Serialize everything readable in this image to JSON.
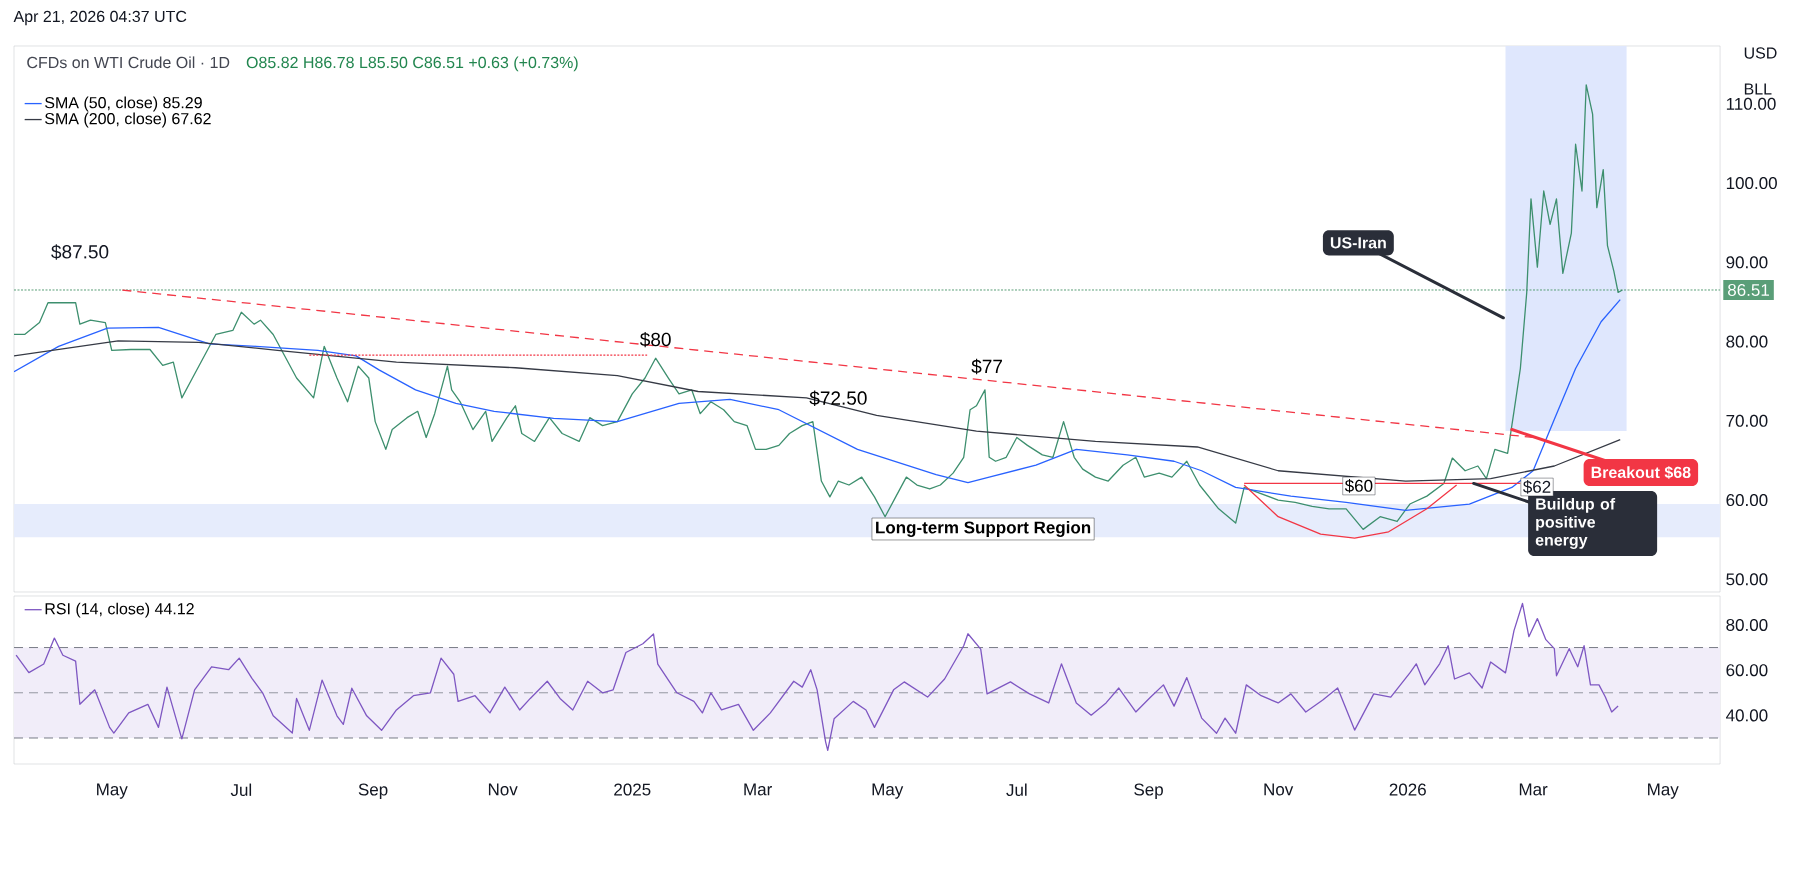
{
  "chart_data": [
    {
      "type": "line",
      "title": "CFDs on WTI Crude Oil · 1D",
      "subtitle": "O85.82 H86.78 L85.50 C86.51 +0.63 (+0.73%)",
      "xlim": [
        "2024-03-16",
        "2026-05-28"
      ],
      "ylim": [
        48.4,
        117.3
      ],
      "yticks": [
        {
          "value": 50,
          "label": "50.00"
        },
        {
          "value": 60,
          "label": "60.00"
        },
        {
          "value": 70,
          "label": "70.00"
        },
        {
          "value": 80,
          "label": "80.00"
        },
        {
          "value": 90,
          "label": "90.00"
        },
        {
          "value": 100,
          "label": "100.00"
        },
        {
          "value": 110,
          "label": "110.00"
        }
      ],
      "tick_labels": "y",
      "legend": "top left",
      "series": [
        {
          "color": "#3d8f6e",
          "x": [
            "2024-03-16",
            "2024-03-21",
            "2024-03-28",
            "2024-04-01",
            "2024-04-14",
            "2024-04-16",
            "2024-04-21",
            "2024-04-28",
            "2024-05-01",
            "2024-05-10",
            "2024-05-19",
            "2024-05-25",
            "2024-05-30",
            "2024-06-03",
            "2024-06-08",
            "2024-06-14",
            "2024-06-19",
            "2024-06-27",
            "2024-07-01",
            "2024-07-07",
            "2024-07-10",
            "2024-07-16",
            "2024-07-22",
            "2024-07-27",
            "2024-08-04",
            "2024-08-09",
            "2024-08-15",
            "2024-08-20",
            "2024-08-25",
            "2024-08-30",
            "2024-09-02",
            "2024-09-07",
            "2024-09-10",
            "2024-09-17",
            "2024-09-22",
            "2024-09-26",
            "2024-09-30",
            "2024-10-06",
            "2024-10-08",
            "2024-10-12",
            "2024-10-18",
            "2024-10-24",
            "2024-10-27",
            "2024-11-03",
            "2024-11-07",
            "2024-11-10",
            "2024-11-16",
            "2024-11-23",
            "2024-11-29",
            "2024-12-07",
            "2024-12-12",
            "2024-12-18",
            "2024-12-25",
            "2025-01-01",
            "2025-01-07",
            "2025-01-12",
            "2025-01-18",
            "2025-01-23",
            "2025-01-29",
            "2025-02-02",
            "2025-02-07",
            "2025-02-13",
            "2025-02-18",
            "2025-02-24",
            "2025-02-28",
            "2025-03-05",
            "2025-03-11",
            "2025-03-16",
            "2025-03-22",
            "2025-03-27",
            "2025-03-31",
            "2025-04-04",
            "2025-04-08",
            "2025-04-13",
            "2025-04-19",
            "2025-04-25",
            "2025-04-30",
            "2025-05-05",
            "2025-05-10",
            "2025-05-15",
            "2025-05-21",
            "2025-05-26",
            "2025-06-01",
            "2025-06-06",
            "2025-06-09",
            "2025-06-12",
            "2025-06-16",
            "2025-06-18",
            "2025-06-21",
            "2025-06-26",
            "2025-07-01",
            "2025-07-06",
            "2025-07-13",
            "2025-07-18",
            "2025-07-23",
            "2025-07-28",
            "2025-08-01",
            "2025-08-07",
            "2025-08-13",
            "2025-08-20",
            "2025-08-26",
            "2025-08-30",
            "2025-09-06",
            "2025-09-12",
            "2025-09-19",
            "2025-09-25",
            "2025-10-04",
            "2025-10-12",
            "2025-10-16",
            "2025-10-24",
            "2025-11-01",
            "2025-11-09",
            "2025-11-17",
            "2025-11-25",
            "2025-12-03",
            "2025-12-11",
            "2025-12-19",
            "2025-12-27",
            "2026-01-02",
            "2026-01-10",
            "2026-01-18",
            "2026-01-22",
            "2026-01-28",
            "2026-02-03",
            "2026-02-07",
            "2026-02-11",
            "2026-02-17",
            "2026-02-20",
            "2026-02-23",
            "2026-02-26",
            "2026-02-28",
            "2026-03-03",
            "2026-03-06",
            "2026-03-09",
            "2026-03-12",
            "2026-03-15",
            "2026-03-19",
            "2026-03-21",
            "2026-03-24",
            "2026-03-26",
            "2026-03-29",
            "2026-03-31",
            "2026-04-03",
            "2026-04-05",
            "2026-04-08",
            "2026-04-10",
            "2026-04-12"
          ],
          "values": [
            80.9,
            80.9,
            82.4,
            84.9,
            84.9,
            82.2,
            82.7,
            82.4,
            78.9,
            79.0,
            79.0,
            77.0,
            77.4,
            72.9,
            75.4,
            78.4,
            80.9,
            81.4,
            83.7,
            82.2,
            82.7,
            80.9,
            77.9,
            75.4,
            72.9,
            79.4,
            75.4,
            72.4,
            76.9,
            75.4,
            69.9,
            66.4,
            68.9,
            70.4,
            71.2,
            67.9,
            70.9,
            76.9,
            73.9,
            72.4,
            68.9,
            71.2,
            67.4,
            70.4,
            71.9,
            68.4,
            67.4,
            70.4,
            68.4,
            67.4,
            70.4,
            69.4,
            69.9,
            73.4,
            75.4,
            77.9,
            75.4,
            73.4,
            73.9,
            70.9,
            72.4,
            71.4,
            69.9,
            69.4,
            66.4,
            66.4,
            66.9,
            68.4,
            69.4,
            69.9,
            62.4,
            60.4,
            62.4,
            61.9,
            62.9,
            60.4,
            57.9,
            60.4,
            62.9,
            61.9,
            61.4,
            61.9,
            63.4,
            65.4,
            71.4,
            71.9,
            73.9,
            65.4,
            64.9,
            65.4,
            67.9,
            66.9,
            65.7,
            65.4,
            69.9,
            65.4,
            63.9,
            62.9,
            62.4,
            64.4,
            65.4,
            62.9,
            63.4,
            62.9,
            64.9,
            61.9,
            58.9,
            57.1,
            61.6,
            60.8,
            60.0,
            59.7,
            59.2,
            58.9,
            58.9,
            56.3,
            57.9,
            57.3,
            59.5,
            60.5,
            62.1,
            65.3,
            63.7,
            64.3,
            62.7,
            66.4,
            65.9,
            71.2,
            76.6,
            86.2,
            98.0,
            89.4,
            99.0,
            94.8,
            98.0,
            88.6,
            93.7,
            104.9,
            99.0,
            112.4,
            108.7,
            96.9,
            101.7,
            92.1,
            88.9,
            86.2,
            86.51
          ]
        },
        {
          "name": "SMA (50, close)  85.29",
          "color": "#2962ff",
          "x": [
            "2024-03-16",
            "2024-04-06",
            "2024-04-29",
            "2024-05-23",
            "2024-06-16",
            "2024-07-08",
            "2024-08-06",
            "2024-08-24",
            "2024-09-04",
            "2024-09-21",
            "2024-10-10",
            "2024-10-28",
            "2024-11-25",
            "2024-12-25",
            "2025-01-23",
            "2025-02-16",
            "2025-03-11",
            "2025-04-17",
            "2025-05-24",
            "2025-06-08",
            "2025-06-18",
            "2025-07-10",
            "2025-07-29",
            "2025-08-22",
            "2025-09-13",
            "2025-09-26",
            "2025-10-12",
            "2025-11-07",
            "2025-12-03",
            "2025-12-31",
            "2026-01-30",
            "2026-02-19",
            "2026-03-01",
            "2026-03-11",
            "2026-03-21",
            "2026-04-02",
            "2026-04-11"
          ],
          "values": [
            76.2,
            79.4,
            81.7,
            81.8,
            79.7,
            79.4,
            78.9,
            78.2,
            76.4,
            73.9,
            72.2,
            71.2,
            70.3,
            69.9,
            72.2,
            72.7,
            71.4,
            66.4,
            63.2,
            62.2,
            62.9,
            64.4,
            66.4,
            65.7,
            64.9,
            63.7,
            61.6,
            60.5,
            59.7,
            58.7,
            59.5,
            61.6,
            63.7,
            70.2,
            76.6,
            82.5,
            85.29
          ]
        },
        {
          "name": "SMA (200, close)  67.62",
          "color": "#363a45",
          "x": [
            "2024-03-16",
            "2024-05-04",
            "2024-06-11",
            "2024-07-18",
            "2024-09-12",
            "2024-11-07",
            "2024-12-25",
            "2025-02-01",
            "2025-03-24",
            "2025-04-26",
            "2025-06-12",
            "2025-08-07",
            "2025-09-24",
            "2025-11-01",
            "2025-12-31",
            "2026-02-09",
            "2026-03-11",
            "2026-04-11"
          ],
          "values": [
            78.2,
            80.1,
            79.9,
            78.9,
            77.4,
            76.7,
            75.7,
            73.7,
            72.9,
            70.7,
            68.7,
            67.4,
            66.7,
            63.7,
            62.4,
            62.7,
            64.3,
            67.62
          ]
        },
        {
          "color": "#f23645",
          "line_style": "dashed",
          "x": [
            "2024-05-06",
            "2026-03-01"
          ],
          "values": [
            86.5,
            67.9
          ]
        },
        {
          "color": "#f23645",
          "line_style": "dotted",
          "x": [
            "2024-08-02",
            "2025-01-08"
          ],
          "values": [
            78.3,
            78.3
          ]
        },
        {
          "color": "#f23645",
          "x": [
            "2025-10-16",
            "2026-02-23"
          ],
          "values": [
            62.1,
            62.1
          ]
        },
        {
          "color": "#f23645",
          "x": [
            "2025-10-16",
            "2025-11-01",
            "2025-11-21",
            "2025-12-07",
            "2025-12-23",
            "2026-01-10",
            "2026-01-24"
          ],
          "values": [
            61.9,
            57.9,
            55.7,
            55.2,
            56.0,
            58.9,
            61.9
          ]
        }
      ],
      "ref_lines": [
        {
          "axis": "y",
          "value": 86.51,
          "label": "86.51",
          "color": "#5a9e78",
          "line_style": "dotted"
        }
      ],
      "bands": [
        {
          "axis": "y",
          "from": 55.3,
          "to": 59.5,
          "label": "Long-term Support Region",
          "color": "#e6ecfc"
        },
        {
          "axis": "x",
          "from": "2026-02-16",
          "to": "2026-04-14",
          "color": "#dfe7fd"
        }
      ],
      "annotations": [
        "Apr 21, 2026 04:37 UTC",
        "USD",
        "BLL",
        "$87.50",
        "$62",
        {
          "text": "$80",
          "x": "2025-01-12",
          "y": 79
        },
        {
          "text": "$72.50",
          "x": "2025-04-08",
          "y": 71.6
        },
        {
          "text": "$77",
          "x": "2025-06-17",
          "y": 75.6
        },
        {
          "text": "$60",
          "x": "2025-12-09",
          "y": 60
        },
        {
          "text": "US-Iran",
          "x": "2026-02-15",
          "y": 83
        },
        {
          "text": "Breakout $68",
          "x": "2026-02-19",
          "y": 68.9
        },
        {
          "text": "Buildup of positive energy",
          "x": "2026-02-01",
          "y": 62.1
        }
      ]
    },
    {
      "type": "line",
      "xlim": [
        "2024-03-16",
        "2026-05-28"
      ],
      "ylim": [
        18.5,
        92.8
      ],
      "yticks": [
        {
          "value": 40,
          "label": "40.00"
        },
        {
          "value": 60,
          "label": "60.00"
        },
        {
          "value": 80,
          "label": "80.00"
        }
      ],
      "xticks": [
        {
          "value": "2024-05-01",
          "label": "May"
        },
        {
          "value": "2024-07-01",
          "label": "Jul"
        },
        {
          "value": "2024-09-01",
          "label": "Sep"
        },
        {
          "value": "2024-11-01",
          "label": "Nov"
        },
        {
          "value": "2025-01-01",
          "label": "2025"
        },
        {
          "value": "2025-03-01",
          "label": "Mar"
        },
        {
          "value": "2025-05-01",
          "label": "May"
        },
        {
          "value": "2025-07-01",
          "label": "Jul"
        },
        {
          "value": "2025-09-01",
          "label": "Sep"
        },
        {
          "value": "2025-11-01",
          "label": "Nov"
        },
        {
          "value": "2026-01-01",
          "label": "2026"
        },
        {
          "value": "2026-03-01",
          "label": "Mar"
        },
        {
          "value": "2026-05-01",
          "label": "May"
        }
      ],
      "legend": "top left",
      "series": [
        {
          "name": "RSI (14, close)  44.12",
          "color": "#7e57c2",
          "x": [
            "2024-03-17",
            "2024-03-23",
            "2024-03-30",
            "2024-04-04",
            "2024-04-08",
            "2024-04-14",
            "2024-04-16",
            "2024-04-23",
            "2024-04-30",
            "2024-05-02",
            "2024-05-09",
            "2024-05-18",
            "2024-05-23",
            "2024-05-27",
            "2024-06-03",
            "2024-06-09",
            "2024-06-17",
            "2024-06-25",
            "2024-06-30",
            "2024-07-06",
            "2024-07-11",
            "2024-07-16",
            "2024-07-25",
            "2024-07-27",
            "2024-08-02",
            "2024-08-08",
            "2024-08-15",
            "2024-08-18",
            "2024-08-22",
            "2024-08-29",
            "2024-09-05",
            "2024-09-12",
            "2024-09-20",
            "2024-09-28",
            "2024-10-03",
            "2024-10-09",
            "2024-10-11",
            "2024-10-19",
            "2024-10-26",
            "2024-11-02",
            "2024-11-09",
            "2024-11-14",
            "2024-11-22",
            "2024-11-28",
            "2024-12-04",
            "2024-12-11",
            "2024-12-18",
            "2024-12-23",
            "2024-12-29",
            "2025-01-06",
            "2025-01-11",
            "2025-01-13",
            "2025-01-22",
            "2025-01-30",
            "2025-02-03",
            "2025-02-07",
            "2025-02-12",
            "2025-02-20",
            "2025-02-27",
            "2025-03-07",
            "2025-03-18",
            "2025-03-22",
            "2025-03-26",
            "2025-03-29",
            "2025-04-02",
            "2025-04-03",
            "2025-04-06",
            "2025-04-15",
            "2025-04-21",
            "2025-04-25",
            "2025-05-04",
            "2025-05-09",
            "2025-05-20",
            "2025-05-28",
            "2025-06-06",
            "2025-06-08",
            "2025-06-14",
            "2025-06-17",
            "2025-06-28",
            "2025-07-07",
            "2025-07-16",
            "2025-07-22",
            "2025-07-29",
            "2025-08-05",
            "2025-08-12",
            "2025-08-18",
            "2025-08-26",
            "2025-09-02",
            "2025-09-08",
            "2025-09-13",
            "2025-09-19",
            "2025-09-26",
            "2025-10-03",
            "2025-10-07",
            "2025-10-12",
            "2025-10-17",
            "2025-10-24",
            "2025-11-01",
            "2025-11-07",
            "2025-11-14",
            "2025-11-22",
            "2025-11-29",
            "2025-12-07",
            "2025-12-16",
            "2025-12-24",
            "2026-01-02",
            "2026-01-05",
            "2026-01-09",
            "2026-01-16",
            "2026-01-20",
            "2026-01-23",
            "2026-01-30",
            "2026-02-05",
            "2026-02-09",
            "2026-02-16",
            "2026-02-20",
            "2026-02-24",
            "2026-02-27",
            "2026-03-03",
            "2026-03-07",
            "2026-03-11",
            "2026-03-12",
            "2026-03-18",
            "2026-03-22",
            "2026-03-25",
            "2026-03-28",
            "2026-04-01",
            "2026-04-04",
            "2026-04-07",
            "2026-04-10"
          ],
          "values": [
            66.6,
            58.9,
            62.7,
            74.2,
            66.6,
            64.0,
            44.9,
            51.3,
            34.7,
            32.2,
            41.1,
            44.9,
            34.7,
            52.5,
            29.6,
            51.3,
            61.5,
            60.2,
            65.3,
            56.4,
            50.0,
            39.8,
            32.2,
            47.5,
            33.4,
            55.6,
            39.8,
            36.0,
            52.0,
            39.8,
            33.4,
            42.4,
            48.7,
            50.0,
            65.3,
            58.2,
            46.2,
            48.7,
            41.1,
            52.5,
            42.4,
            47.5,
            55.1,
            47.5,
            42.4,
            55.1,
            50.0,
            51.3,
            67.8,
            71.7,
            76.0,
            62.7,
            50.0,
            46.2,
            41.1,
            50.0,
            42.4,
            44.9,
            33.4,
            41.1,
            55.1,
            52.5,
            60.2,
            51.3,
            28.3,
            24.5,
            38.5,
            46.2,
            42.4,
            34.7,
            51.3,
            54.8,
            48.1,
            56.1,
            70.8,
            76.1,
            69.3,
            49.5,
            54.8,
            49.5,
            45.5,
            62.8,
            45.5,
            40.1,
            45.5,
            52.1,
            41.5,
            48.1,
            53.5,
            44.1,
            56.7,
            38.8,
            32.1,
            38.8,
            32.1,
            53.5,
            48.7,
            45.5,
            49.5,
            41.5,
            46.8,
            52.1,
            33.5,
            49.5,
            48.1,
            58.8,
            62.8,
            53.5,
            62.8,
            70.8,
            56.1,
            58.8,
            52.1,
            63.6,
            58.8,
            77.5,
            89.5,
            74.8,
            82.8,
            73.5,
            69.5,
            57.5,
            69.5,
            61.5,
            70.8,
            53.5,
            53.5,
            48.1,
            41.5,
            44.12
          ]
        }
      ],
      "ref_lines": [
        {
          "axis": "y",
          "value": 70,
          "color": "#787b86",
          "line_style": "dashed"
        },
        {
          "axis": "y",
          "value": 50,
          "color": "#9598a1",
          "line_style": "dashed"
        },
        {
          "axis": "y",
          "value": 30,
          "color": "#787b86",
          "line_style": "dashed"
        }
      ],
      "bands": [
        {
          "axis": "y",
          "from": 30,
          "to": 70,
          "color": "#f1edf9"
        }
      ]
    }
  ]
}
